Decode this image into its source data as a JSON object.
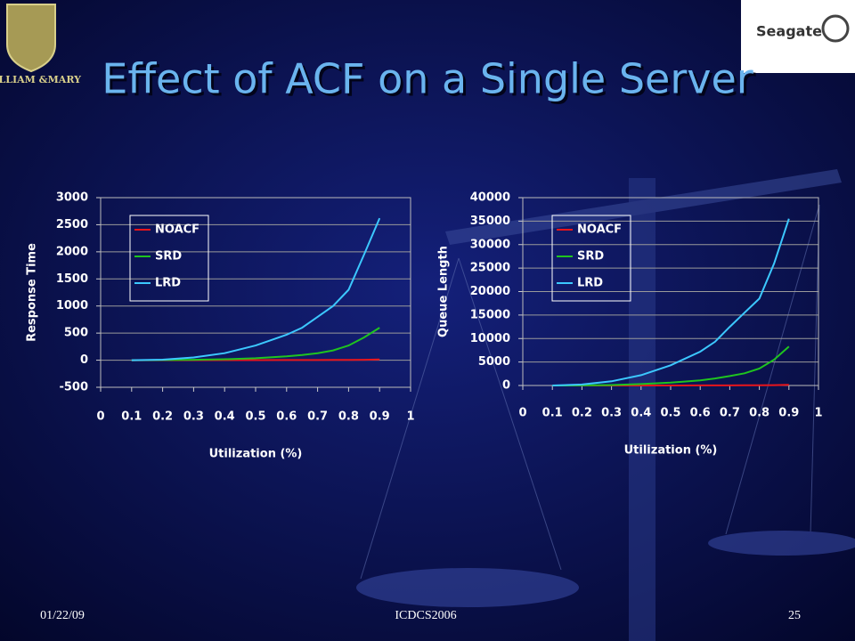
{
  "header": {
    "title": "Effect of ACF on a Single Server",
    "logo_left": "WILLIAM &MARY",
    "logo_right": "Seagate"
  },
  "footer": {
    "date": "01/22/09",
    "conference": "ICDCS2006",
    "page": "25"
  },
  "chart_data": [
    {
      "type": "line",
      "xlabel": "Utilization (%)",
      "ylabel": "Response Time",
      "x": [
        0.1,
        0.2,
        0.3,
        0.4,
        0.5,
        0.6,
        0.65,
        0.7,
        0.75,
        0.8,
        0.85,
        0.9
      ],
      "series": [
        {
          "name": "NOACF",
          "color": "#e8151b",
          "values": [
            0,
            0,
            0,
            1,
            1,
            2,
            2,
            3,
            4,
            5,
            8,
            12
          ]
        },
        {
          "name": "SRD",
          "color": "#1fc41f",
          "values": [
            0,
            2,
            8,
            18,
            35,
            70,
            95,
            130,
            180,
            270,
            420,
            600
          ]
        },
        {
          "name": "LRD",
          "color": "#3cc8ff",
          "values": [
            0,
            10,
            50,
            130,
            270,
            470,
            600,
            800,
            1000,
            1300,
            1950,
            2620
          ]
        }
      ],
      "xlim": [
        0,
        1
      ],
      "xticks": [
        0,
        0.1,
        0.2,
        0.3,
        0.4,
        0.5,
        0.6,
        0.7,
        0.8,
        0.9,
        1
      ],
      "ylim": [
        -500,
        3000
      ],
      "yticks": [
        -500,
        0,
        500,
        1000,
        1500,
        2000,
        2500,
        3000
      ],
      "grid": true,
      "legend": "upper left"
    },
    {
      "type": "line",
      "xlabel": "Utilization (%)",
      "ylabel": "Queue Length",
      "x": [
        0.1,
        0.2,
        0.3,
        0.4,
        0.5,
        0.6,
        0.65,
        0.7,
        0.75,
        0.8,
        0.85,
        0.9
      ],
      "series": [
        {
          "name": "NOACF",
          "color": "#e8151b",
          "values": [
            0,
            0,
            0,
            2,
            5,
            10,
            15,
            20,
            30,
            50,
            80,
            130
          ]
        },
        {
          "name": "SRD",
          "color": "#1fc41f",
          "values": [
            0,
            20,
            100,
            300,
            600,
            1100,
            1500,
            2000,
            2600,
            3600,
            5500,
            8300
          ]
        },
        {
          "name": "LRD",
          "color": "#3cc8ff",
          "values": [
            0,
            200,
            900,
            2200,
            4300,
            7200,
            9300,
            12500,
            15500,
            18500,
            26000,
            35500
          ]
        }
      ],
      "xlim": [
        0,
        1
      ],
      "xticks": [
        0,
        0.1,
        0.2,
        0.3,
        0.4,
        0.5,
        0.6,
        0.7,
        0.8,
        0.9,
        1
      ],
      "ylim": [
        0,
        40000
      ],
      "yticks": [
        0,
        5000,
        10000,
        15000,
        20000,
        25000,
        30000,
        35000,
        40000
      ],
      "grid": true,
      "legend": "upper left"
    }
  ]
}
